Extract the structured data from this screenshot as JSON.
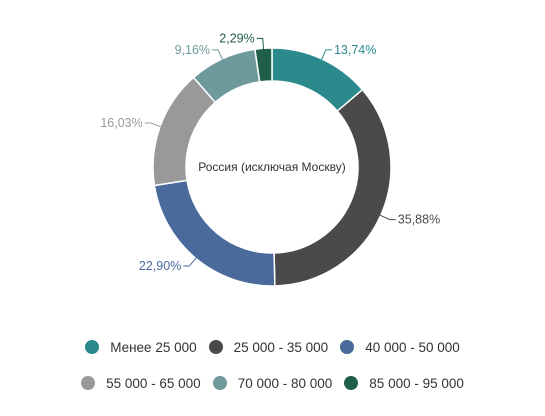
{
  "chart_data": {
    "type": "pie",
    "center_label": "Россия (исключая Москву)",
    "slices": [
      {
        "name": "Менее 25 000",
        "value": 13.74,
        "label": "13,74%",
        "color": "#2a8a8c"
      },
      {
        "name": "25 000 - 35 000",
        "value": 35.88,
        "label": "35,88%",
        "color": "#4a4a4a"
      },
      {
        "name": "40 000 - 50 000",
        "value": 22.9,
        "label": "22,90%",
        "color": "#4a6a9c"
      },
      {
        "name": "55 000 - 65 000",
        "value": 16.03,
        "label": "16,03%",
        "color": "#999999"
      },
      {
        "name": "70 000 - 80 000",
        "value": 9.16,
        "label": "9,16%",
        "color": "#6e9a9c"
      },
      {
        "name": "85 000 - 95 000",
        "value": 2.29,
        "label": "2,29%",
        "color": "#1f5e48"
      }
    ],
    "legend_position": "bottom"
  }
}
